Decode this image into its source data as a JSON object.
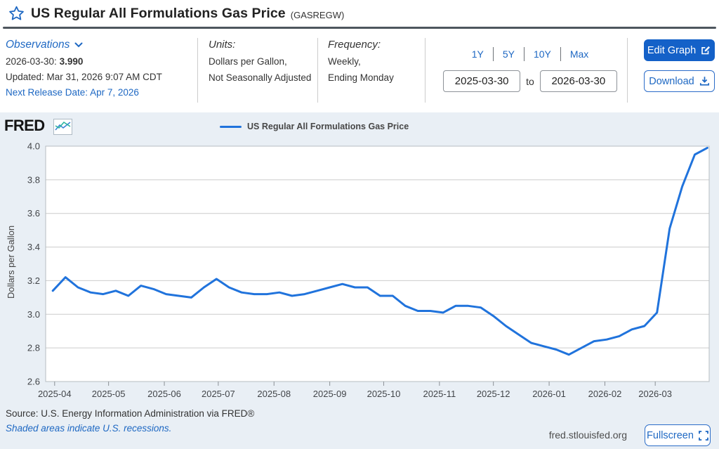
{
  "header": {
    "title": "US Regular All Formulations Gas Price",
    "series_id": "(GASREGW)"
  },
  "meta": {
    "observations": {
      "label": "Observations",
      "latest_date": "2026-03-30:",
      "latest_value": "3.990",
      "updated": "Updated: Mar 31, 2026 9:07 AM CDT",
      "next_release": "Next Release Date: Apr 7, 2026"
    },
    "units": {
      "label": "Units:",
      "line1": "Dollars per Gallon,",
      "line2": "Not Seasonally Adjusted"
    },
    "frequency": {
      "label": "Frequency:",
      "line1": "Weekly,",
      "line2": "Ending Monday"
    },
    "range": {
      "presets": [
        "1Y",
        "5Y",
        "10Y",
        "Max"
      ],
      "start": "2025-03-30",
      "to_label": "to",
      "end": "2026-03-30"
    },
    "actions": {
      "edit_graph": "Edit Graph",
      "download": "Download"
    }
  },
  "chart": {
    "logo": "FRED",
    "legend": "US Regular All Formulations Gas Price"
  },
  "footer": {
    "source": "Source: U.S. Energy Information Administration via FRED®",
    "recessions": "Shaded areas indicate U.S. recessions.",
    "site": "fred.stlouisfed.org",
    "fullscreen": "Fullscreen"
  },
  "colors": {
    "accent": "#1e68c3",
    "line": "#2073dc",
    "button_fill": "#1461c8",
    "chart_bg": "#e9eff5",
    "grid": "#cccccc",
    "frame": "#b6bcc2"
  },
  "chart_data": {
    "type": "line",
    "title": "US Regular All Formulations Gas Price",
    "xlabel": "",
    "ylabel": "Dollars per Gallon",
    "ylim": [
      2.6,
      4.0
    ],
    "y_ticks": [
      2.6,
      2.8,
      3.0,
      3.2,
      3.4,
      3.6,
      3.8,
      4.0
    ],
    "x_ticks": [
      "2025-04",
      "2025-05",
      "2025-06",
      "2025-07",
      "2025-08",
      "2025-09",
      "2025-10",
      "2025-11",
      "2025-12",
      "2026-01",
      "2026-02",
      "2026-03"
    ],
    "x_domain": [
      "2025-03-27",
      "2026-03-31"
    ],
    "grid": true,
    "legend_position": "top",
    "series": [
      {
        "name": "US Regular All Formulations Gas Price",
        "units": "Dollars per Gallon",
        "frequency": "Weekly, Ending Monday",
        "dates": [
          "2025-03-31",
          "2025-04-07",
          "2025-04-14",
          "2025-04-21",
          "2025-04-28",
          "2025-05-05",
          "2025-05-12",
          "2025-05-19",
          "2025-05-26",
          "2025-06-02",
          "2025-06-09",
          "2025-06-16",
          "2025-06-23",
          "2025-06-30",
          "2025-07-07",
          "2025-07-14",
          "2025-07-21",
          "2025-07-28",
          "2025-08-04",
          "2025-08-11",
          "2025-08-18",
          "2025-08-25",
          "2025-09-01",
          "2025-09-08",
          "2025-09-15",
          "2025-09-22",
          "2025-09-29",
          "2025-10-06",
          "2025-10-13",
          "2025-10-20",
          "2025-10-27",
          "2025-11-03",
          "2025-11-10",
          "2025-11-17",
          "2025-11-24",
          "2025-12-01",
          "2025-12-08",
          "2025-12-15",
          "2025-12-22",
          "2025-12-29",
          "2026-01-05",
          "2026-01-12",
          "2026-01-19",
          "2026-01-26",
          "2026-02-02",
          "2026-02-09",
          "2026-02-16",
          "2026-02-23",
          "2026-03-02",
          "2026-03-09",
          "2026-03-16",
          "2026-03-23",
          "2026-03-30"
        ],
        "values": [
          3.14,
          3.22,
          3.16,
          3.13,
          3.12,
          3.14,
          3.11,
          3.17,
          3.15,
          3.12,
          3.11,
          3.1,
          3.16,
          3.21,
          3.16,
          3.13,
          3.12,
          3.12,
          3.13,
          3.11,
          3.12,
          3.14,
          3.16,
          3.18,
          3.16,
          3.16,
          3.11,
          3.11,
          3.05,
          3.02,
          3.02,
          3.01,
          3.05,
          3.05,
          3.04,
          2.99,
          2.93,
          2.88,
          2.83,
          2.81,
          2.79,
          2.76,
          2.8,
          2.84,
          2.85,
          2.87,
          2.91,
          2.93,
          3.01,
          3.51,
          3.76,
          3.95,
          3.99
        ]
      }
    ]
  }
}
